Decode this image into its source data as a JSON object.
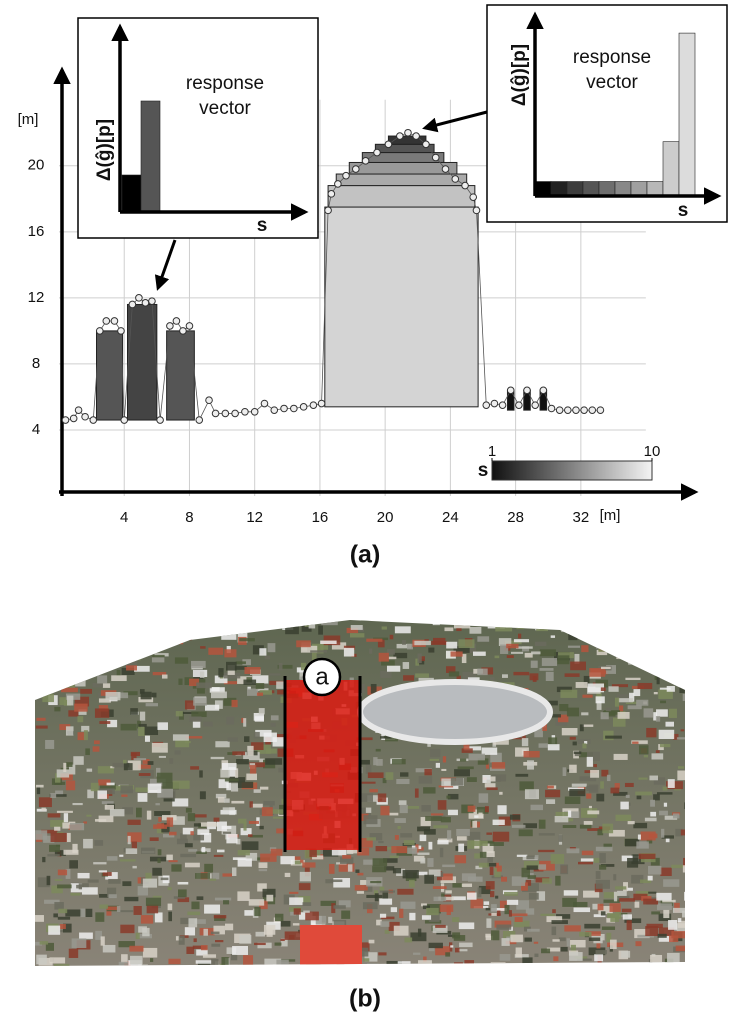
{
  "chart_data": {
    "type": "profile",
    "x_label": "[m]",
    "y_label": "[m]",
    "xlim": [
      0,
      39
    ],
    "ylim": [
      0,
      25.8
    ],
    "xticks": [
      4,
      8,
      12,
      16,
      20,
      24,
      28,
      32
    ],
    "yticks": [
      4,
      8,
      12,
      16,
      20
    ],
    "grid": true,
    "x": [
      0.4,
      0.9,
      1.2,
      1.6,
      2.1,
      2.5,
      2.9,
      3.4,
      3.8,
      4.0,
      4.5,
      4.9,
      5.3,
      5.7,
      6.2,
      6.8,
      7.2,
      7.6,
      8.0,
      8.6,
      9.2,
      9.6,
      10.2,
      10.8,
      11.4,
      12,
      12.6,
      13.2,
      13.8,
      14.4,
      15,
      15.6,
      16.1,
      16.5,
      16.7,
      17.1,
      17.6,
      18.2,
      18.8,
      19.5,
      20.2,
      20.9,
      21.4,
      21.9,
      22.5,
      23.1,
      23.7,
      24.3,
      24.9,
      25.4,
      25.6,
      26.2,
      26.7,
      27.2,
      27.7,
      28.2,
      28.7,
      29.2,
      29.7,
      30.2,
      30.7,
      31.2,
      31.7,
      32.2,
      32.7,
      33.2
    ],
    "values": [
      4.6,
      4.7,
      5.2,
      4.8,
      4.6,
      10,
      10.6,
      10.6,
      10,
      4.6,
      11.6,
      12,
      11.7,
      11.8,
      4.6,
      10.3,
      10.6,
      10,
      10.3,
      4.6,
      5.8,
      5,
      5,
      5,
      5.1,
      5.1,
      5.6,
      5.2,
      5.3,
      5.3,
      5.4,
      5.5,
      5.6,
      17.3,
      18.3,
      18.9,
      19.4,
      19.8,
      20.3,
      20.8,
      21.3,
      21.8,
      22,
      21.8,
      21.3,
      20.5,
      19.8,
      19.2,
      18.8,
      18.1,
      17.3,
      5.5,
      5.6,
      5.5,
      6.4,
      5.5,
      6.4,
      5.5,
      6.4,
      5.3,
      5.2,
      5.2,
      5.2,
      5.2,
      5.2,
      5.2
    ],
    "bars": [
      {
        "x": [
          2.3,
          3.9
        ],
        "base": 4.6,
        "top": 10,
        "color": "#555555"
      },
      {
        "x": [
          4.2,
          6.0
        ],
        "base": 4.6,
        "top": 11.6,
        "color": "#444444"
      },
      {
        "x": [
          6.6,
          8.3
        ],
        "base": 4.6,
        "top": 10,
        "color": "#555555"
      },
      {
        "x": [
          16.3,
          25.7
        ],
        "base": 5.4,
        "top": 17.5,
        "color": "#d4d4d4"
      },
      {
        "x": [
          16.5,
          25.5
        ],
        "base": 17.5,
        "top": 18.8,
        "color": "#c2c2c2"
      },
      {
        "x": [
          17.0,
          25.0
        ],
        "base": 18.8,
        "top": 19.5,
        "color": "#aaaaaa"
      },
      {
        "x": [
          17.8,
          24.4
        ],
        "base": 19.5,
        "top": 20.2,
        "color": "#999999"
      },
      {
        "x": [
          18.6,
          23.6
        ],
        "base": 20.2,
        "top": 20.8,
        "color": "#7a7a7a"
      },
      {
        "x": [
          19.4,
          23.0
        ],
        "base": 20.8,
        "top": 21.3,
        "color": "#555555"
      },
      {
        "x": [
          20.2,
          22.5
        ],
        "base": 21.3,
        "top": 21.8,
        "color": "#333333"
      },
      {
        "x": [
          27.5,
          27.9
        ],
        "base": 5.2,
        "top": 6.4,
        "color": "#111111"
      },
      {
        "x": [
          28.5,
          28.9
        ],
        "base": 5.2,
        "top": 6.4,
        "color": "#111111"
      },
      {
        "x": [
          29.5,
          29.9
        ],
        "base": 5.2,
        "top": 6.4,
        "color": "#111111"
      }
    ],
    "colorbar": {
      "label": "s",
      "ticks": [
        1,
        10
      ]
    },
    "insets": [
      {
        "y_label": "Δ(ĝ)[p]",
        "x_label": "s",
        "text": [
          "response",
          "vector"
        ],
        "ylim": [
          0,
          10
        ],
        "values": [
          2,
          6
        ],
        "colors": [
          "#000000",
          "#555555"
        ]
      },
      {
        "y_label": "Δ(ĝ)[p]",
        "x_label": "s",
        "text": [
          "response",
          "vector"
        ],
        "ylim": [
          0,
          10
        ],
        "values": [
          0.8,
          0.8,
          0.8,
          0.8,
          0.8,
          0.8,
          0.8,
          0.8,
          3,
          9
        ],
        "colors": [
          "#000000",
          "#222222",
          "#3d3d3d",
          "#555555",
          "#6e6e6e",
          "#888888",
          "#a0a0a0",
          "#b8b8b8",
          "#cccccc",
          "#dcdcdc"
        ]
      }
    ]
  },
  "captions": [
    "(a)",
    "(b)"
  ],
  "photo": {
    "marker": "a"
  }
}
